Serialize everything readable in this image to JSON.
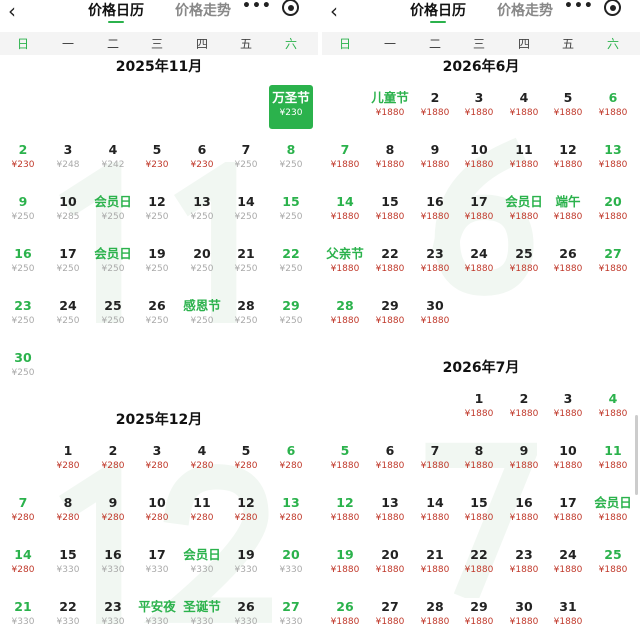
{
  "header": {
    "back_icon": "chevron-left-icon",
    "tabs": [
      {
        "label": "价格日历",
        "active": true
      },
      {
        "label": "价格走势",
        "active": false
      }
    ],
    "more_label": "•••",
    "target_icon": "record-target-icon"
  },
  "weekdays": [
    "日",
    "一",
    "二",
    "三",
    "四",
    "五",
    "六"
  ],
  "colors": {
    "accent": "#2bb24c",
    "low_price": "#c0392b",
    "normal_price": "#aaaaaa"
  },
  "panels": [
    {
      "months": [
        {
          "title": "2025年11月",
          "watermark": "11",
          "first_weekday": 6,
          "days": [
            [
              "万圣节",
              "¥230",
              "selected"
            ],
            [
              "2",
              "¥230",
              "low"
            ],
            [
              "3",
              "¥248",
              "normal"
            ],
            [
              "4",
              "¥242",
              "normal"
            ],
            [
              "5",
              "¥230",
              "low"
            ],
            [
              "6",
              "¥230",
              "low"
            ],
            [
              "7",
              "¥250",
              "normal"
            ],
            [
              "8",
              "¥250",
              "normal"
            ],
            [
              "9",
              "¥250",
              "normal"
            ],
            [
              "10",
              "¥285",
              "normal"
            ],
            [
              "会员日",
              "¥250",
              "normal"
            ],
            [
              "12",
              "¥250",
              "normal"
            ],
            [
              "13",
              "¥250",
              "normal"
            ],
            [
              "14",
              "¥250",
              "normal"
            ],
            [
              "15",
              "¥250",
              "normal"
            ],
            [
              "16",
              "¥250",
              "normal"
            ],
            [
              "17",
              "¥250",
              "normal"
            ],
            [
              "会员日",
              "¥250",
              "normal"
            ],
            [
              "19",
              "¥250",
              "normal"
            ],
            [
              "20",
              "¥250",
              "normal"
            ],
            [
              "21",
              "¥250",
              "normal"
            ],
            [
              "22",
              "¥250",
              "normal"
            ],
            [
              "23",
              "¥250",
              "normal"
            ],
            [
              "24",
              "¥250",
              "normal"
            ],
            [
              "25",
              "¥250",
              "normal"
            ],
            [
              "26",
              "¥250",
              "normal"
            ],
            [
              "感恩节",
              "¥250",
              "normal"
            ],
            [
              "28",
              "¥250",
              "normal"
            ],
            [
              "29",
              "¥250",
              "normal"
            ],
            [
              "30",
              "¥250",
              "normal"
            ]
          ]
        },
        {
          "title": "2025年12月",
          "watermark": "12",
          "first_weekday": 1,
          "days": [
            [
              "1",
              "¥280",
              "low"
            ],
            [
              "2",
              "¥280",
              "low"
            ],
            [
              "3",
              "¥280",
              "low"
            ],
            [
              "4",
              "¥280",
              "low"
            ],
            [
              "5",
              "¥280",
              "low"
            ],
            [
              "6",
              "¥280",
              "low"
            ],
            [
              "7",
              "¥280",
              "low"
            ],
            [
              "8",
              "¥280",
              "low"
            ],
            [
              "9",
              "¥280",
              "low"
            ],
            [
              "10",
              "¥280",
              "low"
            ],
            [
              "11",
              "¥280",
              "low"
            ],
            [
              "12",
              "¥280",
              "low"
            ],
            [
              "13",
              "¥280",
              "low"
            ],
            [
              "14",
              "¥280",
              "low"
            ],
            [
              "15",
              "¥330",
              "normal"
            ],
            [
              "16",
              "¥330",
              "normal"
            ],
            [
              "17",
              "¥330",
              "normal"
            ],
            [
              "会员日",
              "¥330",
              "normal"
            ],
            [
              "19",
              "¥330",
              "normal"
            ],
            [
              "20",
              "¥330",
              "normal"
            ],
            [
              "21",
              "¥330",
              "normal"
            ],
            [
              "22",
              "¥330",
              "normal"
            ],
            [
              "23",
              "¥330",
              "normal"
            ],
            [
              "平安夜",
              "¥330",
              "normal"
            ],
            [
              "圣诞节",
              "¥330",
              "normal"
            ],
            [
              "26",
              "¥330",
              "normal"
            ],
            [
              "27",
              "¥330",
              "normal"
            ]
          ]
        }
      ]
    },
    {
      "months": [
        {
          "title": "2026年6月",
          "watermark": "6",
          "first_weekday": 1,
          "days": [
            [
              "儿童节",
              "¥1880",
              "low"
            ],
            [
              "2",
              "¥1880",
              "low"
            ],
            [
              "3",
              "¥1880",
              "low"
            ],
            [
              "4",
              "¥1880",
              "low"
            ],
            [
              "5",
              "¥1880",
              "low"
            ],
            [
              "6",
              "¥1880",
              "low"
            ],
            [
              "7",
              "¥1880",
              "low"
            ],
            [
              "8",
              "¥1880",
              "low"
            ],
            [
              "9",
              "¥1880",
              "low"
            ],
            [
              "10",
              "¥1880",
              "low"
            ],
            [
              "11",
              "¥1880",
              "low"
            ],
            [
              "12",
              "¥1880",
              "low"
            ],
            [
              "13",
              "¥1880",
              "low"
            ],
            [
              "14",
              "¥1880",
              "low"
            ],
            [
              "15",
              "¥1880",
              "low"
            ],
            [
              "16",
              "¥1880",
              "low"
            ],
            [
              "17",
              "¥1880",
              "low"
            ],
            [
              "会员日",
              "¥1880",
              "low"
            ],
            [
              "端午",
              "¥1880",
              "low"
            ],
            [
              "20",
              "¥1880",
              "low"
            ],
            [
              "父亲节",
              "¥1880",
              "low"
            ],
            [
              "22",
              "¥1880",
              "low"
            ],
            [
              "23",
              "¥1880",
              "low"
            ],
            [
              "24",
              "¥1880",
              "low"
            ],
            [
              "25",
              "¥1880",
              "low"
            ],
            [
              "26",
              "¥1880",
              "low"
            ],
            [
              "27",
              "¥1880",
              "low"
            ],
            [
              "28",
              "¥1880",
              "low"
            ],
            [
              "29",
              "¥1880",
              "low"
            ],
            [
              "30",
              "¥1880",
              "low"
            ]
          ]
        },
        {
          "title": "2026年7月",
          "watermark": "7",
          "first_weekday": 3,
          "days": [
            [
              "1",
              "¥1880",
              "low"
            ],
            [
              "2",
              "¥1880",
              "low"
            ],
            [
              "3",
              "¥1880",
              "low"
            ],
            [
              "4",
              "¥1880",
              "low"
            ],
            [
              "5",
              "¥1880",
              "low"
            ],
            [
              "6",
              "¥1880",
              "low"
            ],
            [
              "7",
              "¥1880",
              "low"
            ],
            [
              "8",
              "¥1880",
              "low"
            ],
            [
              "9",
              "¥1880",
              "low"
            ],
            [
              "10",
              "¥1880",
              "low"
            ],
            [
              "11",
              "¥1880",
              "low"
            ],
            [
              "12",
              "¥1880",
              "low"
            ],
            [
              "13",
              "¥1880",
              "low"
            ],
            [
              "14",
              "¥1880",
              "low"
            ],
            [
              "15",
              "¥1880",
              "low"
            ],
            [
              "16",
              "¥1880",
              "low"
            ],
            [
              "17",
              "¥1880",
              "low"
            ],
            [
              "会员日",
              "¥1880",
              "low"
            ],
            [
              "19",
              "¥1880",
              "low"
            ],
            [
              "20",
              "¥1880",
              "low"
            ],
            [
              "21",
              "¥1880",
              "low"
            ],
            [
              "22",
              "¥1880",
              "low"
            ],
            [
              "23",
              "¥1880",
              "low"
            ],
            [
              "24",
              "¥1880",
              "low"
            ],
            [
              "25",
              "¥1880",
              "low"
            ],
            [
              "26",
              "¥1880",
              "low"
            ],
            [
              "27",
              "¥1880",
              "low"
            ],
            [
              "28",
              "¥1880",
              "low"
            ],
            [
              "29",
              "¥1880",
              "low"
            ],
            [
              "30",
              "¥1880",
              "low"
            ],
            [
              "31",
              "¥1880",
              "low"
            ]
          ]
        }
      ]
    }
  ]
}
